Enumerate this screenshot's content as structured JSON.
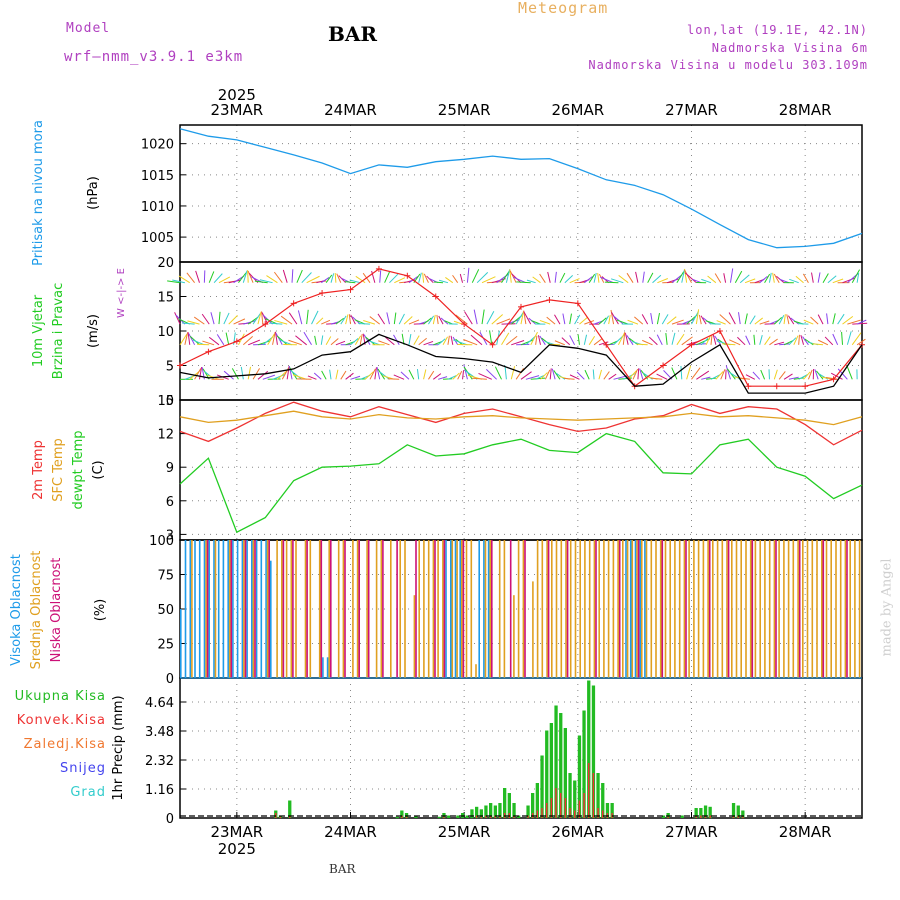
{
  "header": {
    "title": "BAR",
    "meteogram_label": "Meteogram",
    "model_header": "Model",
    "model_name": "wrf—nmm_v3.9.1  e3km",
    "location_lines": [
      "lon,lat (19.1E, 42.1N)",
      "Nadmorska Visina 6m",
      "Nadmorska Visina u modelu 303.109m"
    ],
    "footer": "BAR",
    "watermark": "made by Angel"
  },
  "colors": {
    "pressure": "#1e9be9",
    "wind_speed": "#000000",
    "gust": "#ee2222",
    "t2m": "#ee3333",
    "tsfc": "#e0a020",
    "dewpoint": "#22cc22",
    "cloud_high": "#1e9be9",
    "cloud_mid": "#e0a020",
    "cloud_low": "#cc1177",
    "precip_total": "#22bb22",
    "precip_conv": "#ee3333",
    "meteogram": "#e8b060",
    "model": "#b040c0",
    "location": "#b040c0"
  },
  "chart_data": [
    {
      "type": "line",
      "panel": "pressure",
      "ylabel": "Pritisak na nivou mora",
      "unit": "(hPa)",
      "yticks": [
        1005,
        1010,
        1015,
        1020
      ],
      "ylim": [
        1001,
        1023
      ],
      "xlabels_top": [
        "23MAR",
        "24MAR",
        "25MAR",
        "26MAR",
        "27MAR",
        "28MAR"
      ],
      "year": "2025",
      "x_days": [
        0,
        0.25,
        0.5,
        0.75,
        1.0,
        1.25,
        1.5,
        1.75,
        2.0,
        2.25,
        2.5,
        2.75,
        3.0,
        3.25,
        3.5,
        3.75,
        4.0,
        4.25,
        4.5,
        4.75,
        5.0,
        5.25,
        5.5,
        5.75,
        6.0
      ],
      "series": [
        {
          "name": "MSLP",
          "values": [
            1022.4,
            1021.2,
            1020.6,
            1019.4,
            1018.2,
            1016.9,
            1015.2,
            1016.6,
            1016.2,
            1017.1,
            1017.5,
            1018.0,
            1017.5,
            1017.6,
            1016.0,
            1014.2,
            1013.3,
            1011.8,
            1009.5,
            1007.0,
            1004.6,
            1003.3,
            1003.5,
            1004.0,
            1005.6
          ]
        }
      ]
    },
    {
      "type": "line",
      "panel": "wind",
      "ylabel": [
        "10m Vjetar",
        "Brzina i Pravac"
      ],
      "unit": "(m/s)",
      "compass": "W <-|-> E",
      "yticks": [
        0,
        5,
        10,
        15,
        20
      ],
      "ylim": [
        0,
        20
      ],
      "x_days": [
        0,
        0.25,
        0.5,
        0.75,
        1.0,
        1.25,
        1.5,
        1.75,
        2.0,
        2.25,
        2.5,
        2.75,
        3.0,
        3.25,
        3.5,
        3.75,
        4.0,
        4.25,
        4.5,
        4.75,
        5.0,
        5.25,
        5.5,
        5.75,
        6.0
      ],
      "series": [
        {
          "name": "wind speed",
          "values": [
            4.0,
            3.2,
            3.5,
            3.8,
            4.5,
            6.5,
            7.0,
            9.5,
            8.0,
            6.3,
            6.0,
            5.5,
            4.0,
            8.0,
            7.5,
            6.5,
            2.0,
            2.3,
            5.5,
            8.0,
            1.0,
            1.0,
            1.0,
            2.0,
            8.0
          ]
        },
        {
          "name": "gust",
          "values": [
            5.0,
            7.0,
            8.5,
            11.0,
            14.0,
            15.5,
            16.0,
            19.0,
            18.0,
            15.0,
            11.0,
            8.0,
            13.5,
            14.5,
            14.0,
            8.0,
            2.0,
            5.0,
            8.0,
            10.0,
            2.0,
            2.0,
            2.0,
            3.0,
            8.0
          ]
        }
      ]
    },
    {
      "type": "line",
      "panel": "temperature",
      "ylabel": [
        "2m Temp",
        "SFC Temp",
        "dewpt Temp"
      ],
      "unit": "(C)",
      "yticks": [
        3,
        6,
        9,
        12,
        15
      ],
      "ylim": [
        2.5,
        15
      ],
      "x_days": [
        0,
        0.25,
        0.5,
        0.75,
        1.0,
        1.25,
        1.5,
        1.75,
        2.0,
        2.25,
        2.5,
        2.75,
        3.0,
        3.25,
        3.5,
        3.75,
        4.0,
        4.25,
        4.5,
        4.75,
        5.0,
        5.25,
        5.5,
        5.75,
        6.0
      ],
      "series": [
        {
          "name": "2m Temp",
          "values": [
            12.2,
            11.3,
            12.5,
            13.8,
            14.8,
            14.0,
            13.5,
            14.4,
            13.7,
            13.0,
            13.8,
            14.2,
            13.5,
            12.8,
            12.2,
            12.5,
            13.3,
            13.6,
            14.6,
            13.8,
            14.4,
            14.2,
            12.8,
            11.0,
            12.3
          ]
        },
        {
          "name": "SFC Temp",
          "values": [
            13.5,
            13.0,
            13.2,
            13.6,
            14.0,
            13.5,
            13.3,
            13.7,
            13.4,
            13.3,
            13.5,
            13.6,
            13.4,
            13.3,
            13.2,
            13.3,
            13.4,
            13.5,
            13.8,
            13.5,
            13.6,
            13.4,
            13.2,
            12.8,
            13.5
          ]
        },
        {
          "name": "dewpt Temp",
          "values": [
            7.5,
            9.8,
            3.2,
            4.5,
            7.8,
            9.0,
            9.1,
            9.3,
            11.0,
            10.0,
            10.2,
            11.0,
            11.5,
            10.5,
            10.3,
            12.0,
            11.3,
            8.5,
            8.4,
            11.0,
            11.5,
            9.0,
            8.2,
            6.2,
            7.4
          ]
        }
      ]
    },
    {
      "type": "bar",
      "panel": "cloud",
      "ylabel": [
        "Visoka Oblacnost",
        "Srednja Oblacnost",
        "Niska Oblacnost"
      ],
      "unit": "(%)",
      "yticks": [
        0,
        25,
        50,
        75,
        100
      ],
      "ylim": [
        0,
        100
      ],
      "series": [
        {
          "name": "Visoka Oblacnost",
          "values": [
            50,
            100,
            100,
            100,
            100,
            100,
            100,
            100,
            100,
            100,
            100,
            100,
            100,
            100,
            100,
            100,
            100,
            100,
            100,
            85,
            0,
            0,
            0,
            0,
            0,
            0,
            0,
            0,
            0,
            0,
            15,
            15,
            0,
            0,
            0,
            0,
            0,
            0,
            0,
            0,
            0,
            0,
            0,
            0,
            0,
            0,
            0,
            0,
            0,
            0,
            0,
            0,
            0,
            0,
            0,
            0,
            100,
            100,
            100,
            100,
            0,
            0,
            0,
            100,
            100,
            100,
            0,
            0,
            0,
            0,
            0,
            0,
            0,
            0,
            0,
            0,
            0,
            0,
            0,
            0,
            0,
            0,
            0,
            0,
            0,
            0,
            0,
            0,
            0,
            0,
            0,
            0,
            0,
            0,
            100,
            100,
            100,
            100,
            100,
            0,
            0,
            0,
            0,
            0,
            0,
            0,
            0,
            0,
            0,
            0,
            0,
            0,
            0,
            0,
            0,
            0,
            0,
            0,
            0,
            0,
            0,
            0,
            0,
            0,
            0,
            0,
            0,
            0,
            0,
            0,
            0,
            0,
            0,
            0,
            0,
            0,
            0,
            0,
            0,
            0,
            0,
            0,
            0,
            0
          ]
        },
        {
          "name": "Srednja Oblacnost",
          "values": [
            0,
            0,
            100,
            0,
            0,
            100,
            0,
            100,
            0,
            0,
            100,
            0,
            0,
            100,
            0,
            100,
            0,
            0,
            100,
            0,
            100,
            100,
            100,
            100,
            100,
            0,
            100,
            100,
            0,
            100,
            0,
            100,
            0,
            100,
            100,
            0,
            100,
            100,
            0,
            100,
            0,
            100,
            100,
            0,
            100,
            0,
            100,
            100,
            0,
            60,
            100,
            100,
            100,
            100,
            100,
            100,
            0,
            100,
            100,
            100,
            100,
            100,
            10,
            0,
            100,
            100,
            0,
            100,
            100,
            0,
            60,
            100,
            100,
            0,
            70,
            100,
            100,
            100,
            100,
            100,
            100,
            100,
            100,
            100,
            100,
            100,
            100,
            100,
            100,
            100,
            100,
            100,
            100,
            100,
            100,
            100,
            100,
            100,
            100,
            100,
            100,
            100,
            100,
            100,
            100,
            100,
            100,
            100,
            100,
            100,
            100,
            100,
            100,
            100,
            100,
            100,
            100,
            100,
            100,
            100,
            100,
            100,
            100,
            100,
            100,
            100,
            100,
            100,
            100,
            100,
            100,
            100,
            100,
            100,
            100,
            100,
            100,
            100,
            100,
            100,
            100,
            100,
            100,
            100
          ]
        },
        {
          "name": "Niska Oblacnost",
          "values": [
            0,
            0,
            0,
            0,
            0,
            100,
            0,
            0,
            0,
            0,
            100,
            0,
            0,
            100,
            0,
            100,
            0,
            0,
            100,
            0,
            0,
            100,
            0,
            100,
            0,
            0,
            100,
            0,
            0,
            100,
            0,
            100,
            0,
            0,
            100,
            0,
            0,
            100,
            0,
            100,
            0,
            0,
            100,
            0,
            0,
            100,
            0,
            0,
            0,
            100,
            0,
            0,
            0,
            100,
            0,
            100,
            0,
            0,
            0,
            100,
            0,
            0,
            0,
            0,
            0,
            100,
            0,
            0,
            0,
            100,
            0,
            0,
            100,
            0,
            0,
            0,
            0,
            100,
            0,
            0,
            0,
            100,
            0,
            0,
            0,
            0,
            0,
            100,
            0,
            0,
            0,
            0,
            100,
            0,
            0,
            0,
            100,
            0,
            0,
            0,
            0,
            100,
            0,
            0,
            0,
            0,
            100,
            0,
            0,
            0,
            0,
            100,
            0,
            0,
            0,
            100,
            0,
            0,
            0,
            0,
            100,
            0,
            0,
            0,
            0,
            100,
            0,
            0,
            0,
            0,
            100,
            0,
            0,
            0,
            0,
            100,
            0,
            0,
            0,
            0,
            100,
            0,
            0,
            0
          ]
        }
      ]
    },
    {
      "type": "bar",
      "panel": "precip",
      "legend": [
        "Ukupna Kisa",
        "Konvek.Kisa",
        "Zaledj.Kisa",
        "Snijeg",
        "Grad"
      ],
      "legend_colors": [
        "#22bb22",
        "#ee3333",
        "#f07830",
        "#4444ee",
        "#33cccc"
      ],
      "ylabel": "1hr Precip (mm)",
      "yticks": [
        0,
        1.16,
        2.32,
        3.48,
        4.64
      ],
      "ylim": [
        0,
        5.6
      ],
      "xlabels_bottom": [
        "23MAR",
        "24MAR",
        "25MAR",
        "26MAR",
        "27MAR",
        "28MAR"
      ],
      "year": "2025",
      "series": [
        {
          "name": "Ukupna Kisa",
          "values": [
            0,
            0,
            0,
            0,
            0,
            0,
            0,
            0,
            0,
            0,
            0,
            0,
            0,
            0,
            0,
            0,
            0,
            0,
            0,
            0,
            0.3,
            0.1,
            0,
            0.7,
            0,
            0,
            0,
            0,
            0,
            0,
            0,
            0,
            0,
            0,
            0,
            0,
            0,
            0,
            0,
            0,
            0,
            0,
            0,
            0,
            0,
            0,
            0.05,
            0.3,
            0.2,
            0,
            0.1,
            0,
            0,
            0,
            0,
            0.05,
            0.2,
            0.1,
            0,
            0.1,
            0.2,
            0.1,
            0.35,
            0.45,
            0.35,
            0.5,
            0.6,
            0.5,
            0.6,
            1.2,
            1.0,
            0.6,
            0.1,
            0,
            0.5,
            1.0,
            1.4,
            2.5,
            3.5,
            3.8,
            4.5,
            4.2,
            3.6,
            1.8,
            1.5,
            3.3,
            4.3,
            5.5,
            5.3,
            1.8,
            1.4,
            0.6,
            0.6,
            0,
            0,
            0,
            0,
            0,
            0,
            0,
            0,
            0,
            0,
            0.1,
            0.2,
            0,
            0,
            0.1,
            0,
            0,
            0.4,
            0.4,
            0.5,
            0.45,
            0,
            0,
            0,
            0,
            0.6,
            0.5,
            0.3,
            0,
            0,
            0,
            0,
            0,
            0,
            0,
            0,
            0,
            0,
            0,
            0,
            0,
            0,
            0,
            0,
            0,
            0,
            0,
            0,
            0,
            0,
            0,
            0,
            0
          ]
        },
        {
          "name": "Konvek.Kisa",
          "values": [
            0,
            0,
            0,
            0,
            0,
            0,
            0,
            0,
            0,
            0,
            0,
            0,
            0,
            0,
            0,
            0,
            0,
            0,
            0,
            0,
            0.2,
            0.05,
            0,
            0.1,
            0,
            0,
            0,
            0,
            0,
            0,
            0,
            0,
            0,
            0,
            0,
            0,
            0,
            0,
            0,
            0,
            0,
            0,
            0,
            0,
            0,
            0,
            0,
            0.1,
            0.05,
            0,
            0,
            0,
            0,
            0,
            0,
            0,
            0.05,
            0,
            0,
            0,
            0,
            0,
            0,
            0.1,
            0.05,
            0.1,
            0.1,
            0.1,
            0.1,
            0.2,
            0.2,
            0.1,
            0,
            0,
            0.1,
            0.2,
            0.3,
            0.4,
            0.6,
            0.8,
            1.2,
            1.0,
            0.8,
            0.4,
            0.3,
            0.7,
            1.0,
            2.2,
            1.8,
            0.4,
            0.3,
            0.2,
            0.2,
            0,
            0,
            0,
            0,
            0,
            0,
            0,
            0,
            0,
            0,
            0,
            0.05,
            0,
            0,
            0,
            0,
            0,
            0.1,
            0.1,
            0.1,
            0.1,
            0,
            0,
            0,
            0,
            0.1,
            0.1,
            0.05,
            0,
            0,
            0,
            0,
            0,
            0,
            0,
            0,
            0,
            0,
            0,
            0,
            0,
            0,
            0,
            0,
            0,
            0,
            0,
            0,
            0,
            0,
            0,
            0,
            0
          ]
        }
      ]
    }
  ]
}
